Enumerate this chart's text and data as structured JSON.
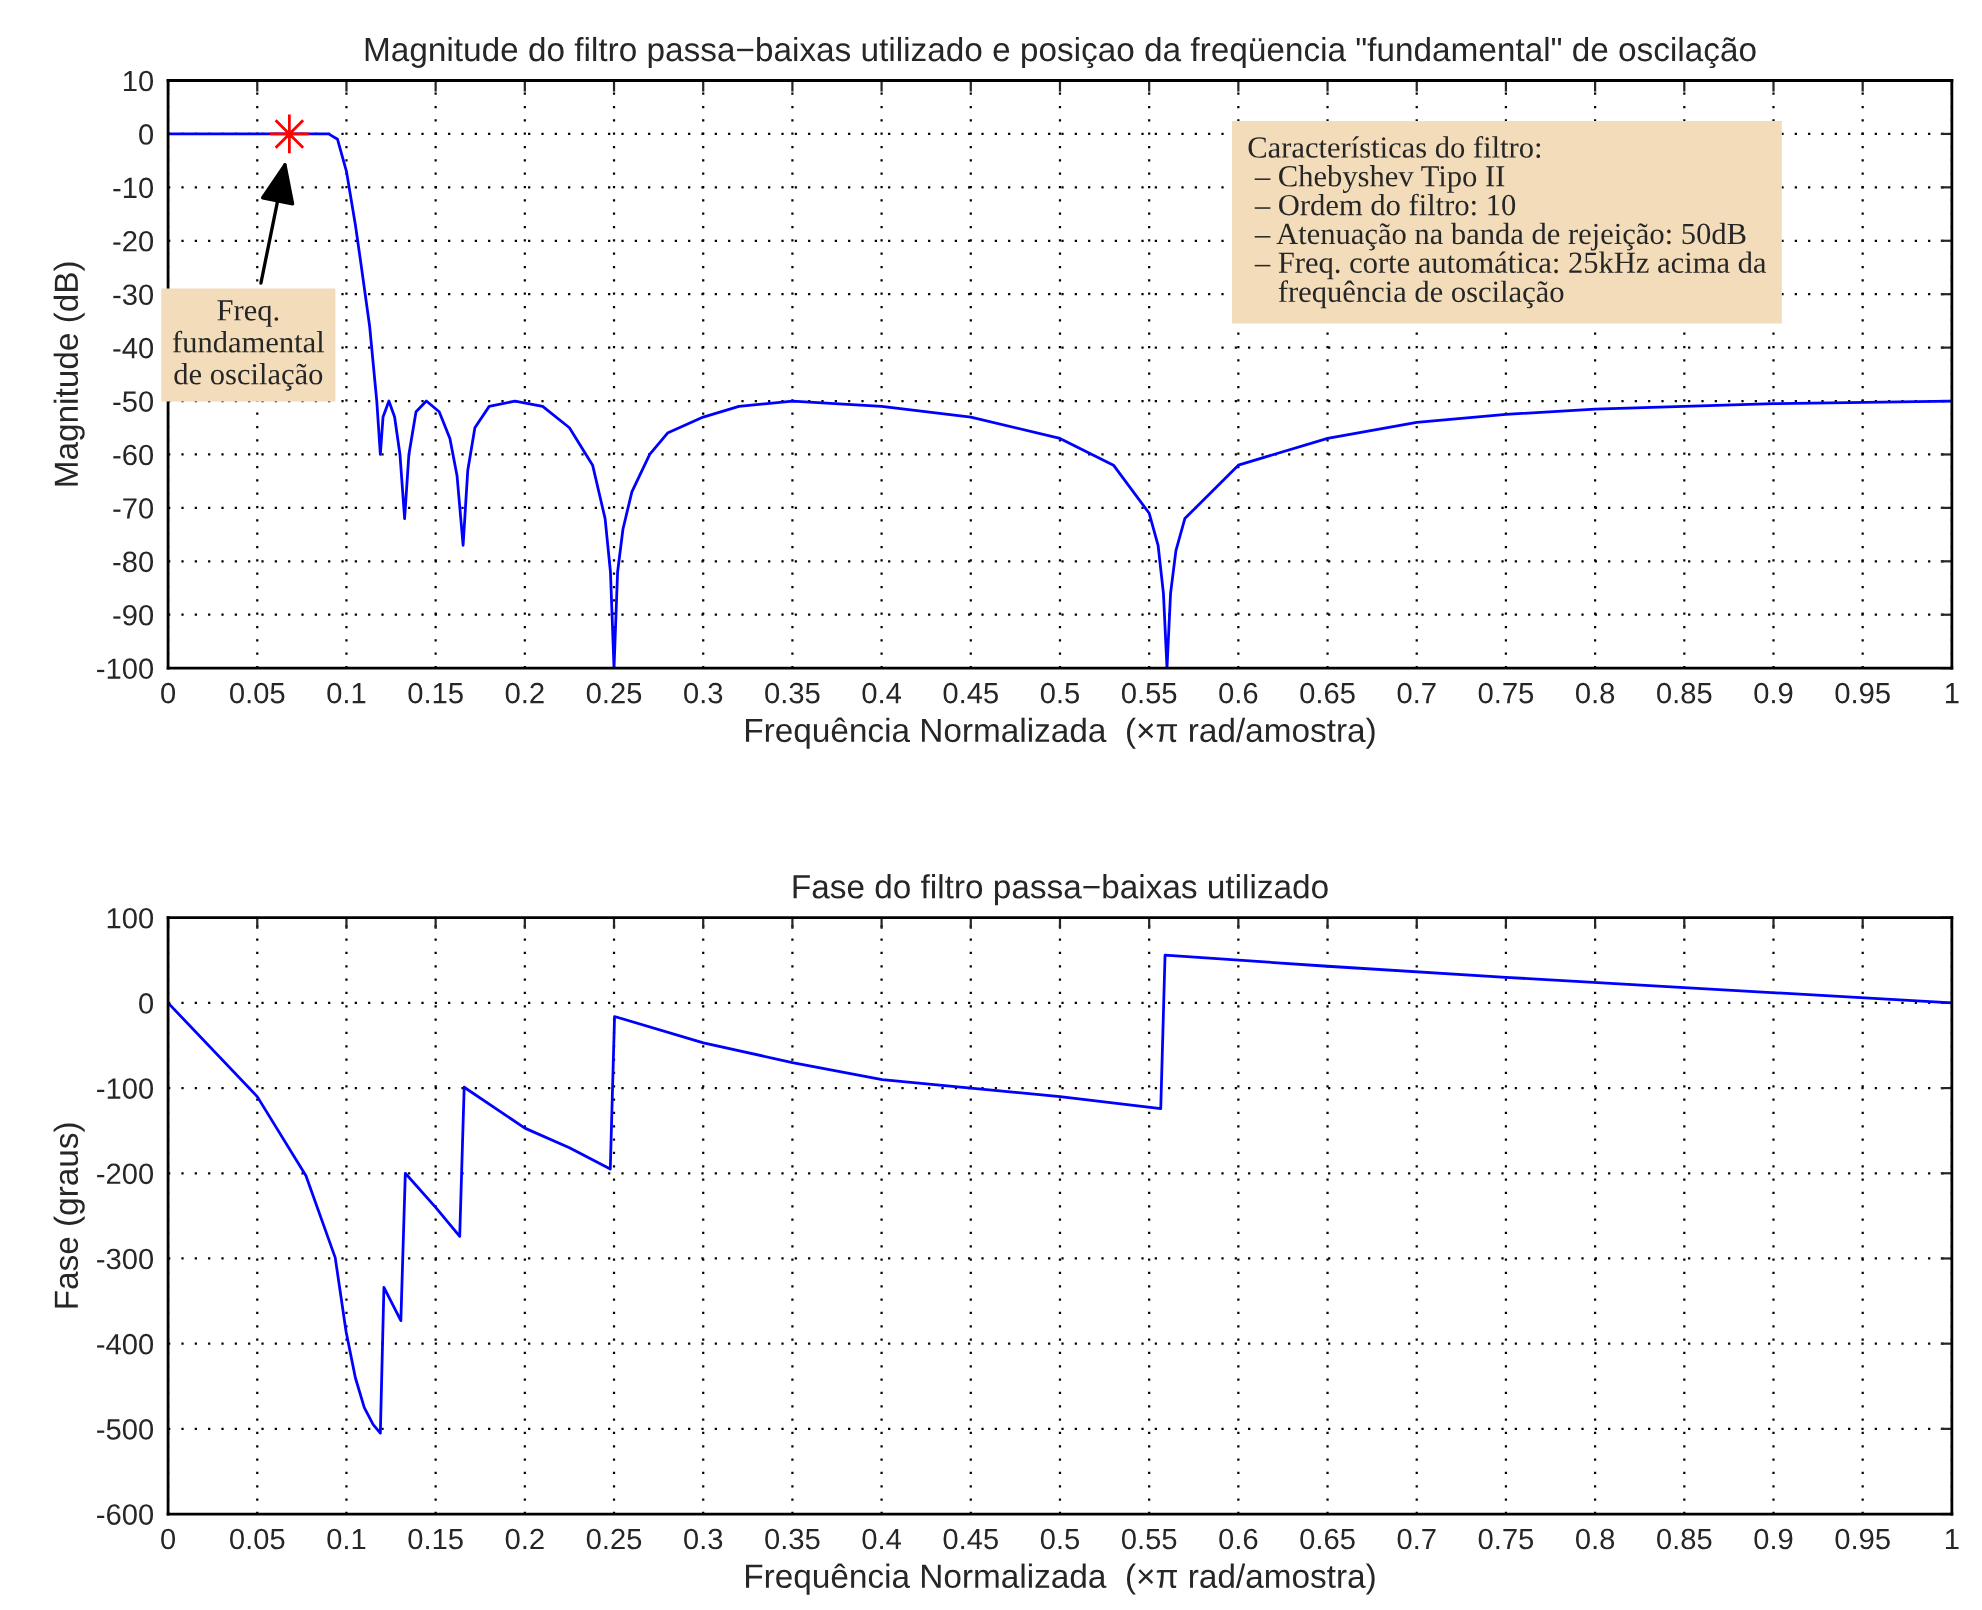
{
  "chart_data": [
    {
      "type": "line",
      "title": "Magnitude do filtro passa−baixas utilizado e posiçao da freqüencia \"fundamental\" de oscilação",
      "xlabel": "Frequência Normalizada  (×π rad/amostra)",
      "ylabel": "Magnitude (dB)",
      "xlim": [
        0,
        1
      ],
      "ylim": [
        -100,
        10
      ],
      "xticks": [
        0,
        0.05,
        0.1,
        0.15,
        0.2,
        0.25,
        0.3,
        0.35,
        0.4,
        0.45,
        0.5,
        0.55,
        0.6,
        0.65,
        0.7,
        0.75,
        0.8,
        0.85,
        0.9,
        0.95,
        1
      ],
      "yticks": [
        -100,
        -90,
        -80,
        -70,
        -60,
        -50,
        -40,
        -30,
        -20,
        -10,
        0,
        10
      ],
      "grid": true,
      "series": [
        {
          "color": "#0000ff",
          "marker": "none",
          "x": [
            0,
            0.05,
            0.09,
            0.095,
            0.1,
            0.102,
            0.105,
            0.108,
            0.113,
            0.117,
            0.119,
            0.1205,
            0.1238,
            0.127,
            0.13,
            0.1326,
            0.135,
            0.139,
            0.1448,
            0.152,
            0.158,
            0.162,
            0.1654,
            0.168,
            0.172,
            0.18,
            0.1945,
            0.21,
            0.225,
            0.238,
            0.245,
            0.248,
            0.25,
            0.252,
            0.255,
            0.26,
            0.27,
            0.28,
            0.3,
            0.32,
            0.35,
            0.4,
            0.45,
            0.5,
            0.53,
            0.55,
            0.555,
            0.558,
            0.56,
            0.562,
            0.565,
            0.57,
            0.6,
            0.65,
            0.7,
            0.75,
            0.8,
            0.9,
            1
          ],
          "values": [
            0,
            0,
            0,
            -1,
            -7,
            -11,
            -17,
            -24,
            -36,
            -50,
            -60,
            -53,
            -50,
            -53,
            -60,
            -72,
            -60,
            -52,
            -50,
            -52,
            -57,
            -64,
            -77,
            -63,
            -55,
            -51,
            -50,
            -51,
            -55,
            -62,
            -72,
            -82,
            -100,
            -82,
            -74,
            -67,
            -60,
            -56,
            -53,
            -51,
            -50,
            -51,
            -53,
            -57,
            -62,
            -71,
            -77,
            -86,
            -100,
            -86,
            -78,
            -72,
            -62,
            -57,
            -54,
            -52.5,
            -51.5,
            -50.5,
            -50
          ]
        },
        {
          "type": "scatter",
          "color": "#ff0000",
          "marker": "cross",
          "x": [
            0.068
          ],
          "values": [
            0
          ]
        }
      ],
      "annotations": [
        {
          "text": "Freq.\nfundamental\nde oscilação",
          "x": 0.066,
          "y": -5
        },
        "Características do filtro:\n – Chebyshev Tipo II\n – Ordem do filtro: 10\n – Atenuação na banda de rejeição: 50dB\n – Freq. corte automática: 25kHz acima da\n    frequência de oscilação"
      ]
    },
    {
      "type": "line",
      "title": "Fase do filtro passa−baixas utilizado",
      "xlabel": "Frequência Normalizada  (×π rad/amostra)",
      "ylabel": "Fase (graus)",
      "xlim": [
        0,
        1
      ],
      "ylim": [
        -600,
        100
      ],
      "xticks": [
        0,
        0.05,
        0.1,
        0.15,
        0.2,
        0.25,
        0.3,
        0.35,
        0.4,
        0.45,
        0.5,
        0.55,
        0.6,
        0.65,
        0.7,
        0.75,
        0.8,
        0.85,
        0.9,
        0.95,
        1
      ],
      "yticks": [
        -600,
        -500,
        -400,
        -300,
        -200,
        -100,
        0,
        100
      ],
      "grid": true,
      "series": [
        {
          "color": "#0000ff",
          "marker": "none",
          "x": [
            0,
            0.05,
            0.0773,
            0.0937,
            0.0998,
            0.105,
            0.11,
            0.115,
            0.119,
            0.121,
            0.1305,
            0.133,
            0.15,
            0.1635,
            0.166,
            0.2,
            0.225,
            0.2479,
            0.2503,
            0.3001,
            0.35,
            0.4003,
            0.45,
            0.5,
            0.5565,
            0.5589,
            0.65,
            0.75,
            0.85,
            1
          ],
          "values": [
            0,
            -110,
            -203,
            -299,
            -386,
            -440,
            -475,
            -495,
            -505,
            -334,
            -373,
            -200,
            -240,
            -274,
            -99,
            -147,
            -170,
            -195,
            -16,
            -47,
            -70,
            -90,
            -100,
            -110,
            -124,
            56,
            43,
            30,
            18,
            0
          ]
        }
      ]
    }
  ]
}
